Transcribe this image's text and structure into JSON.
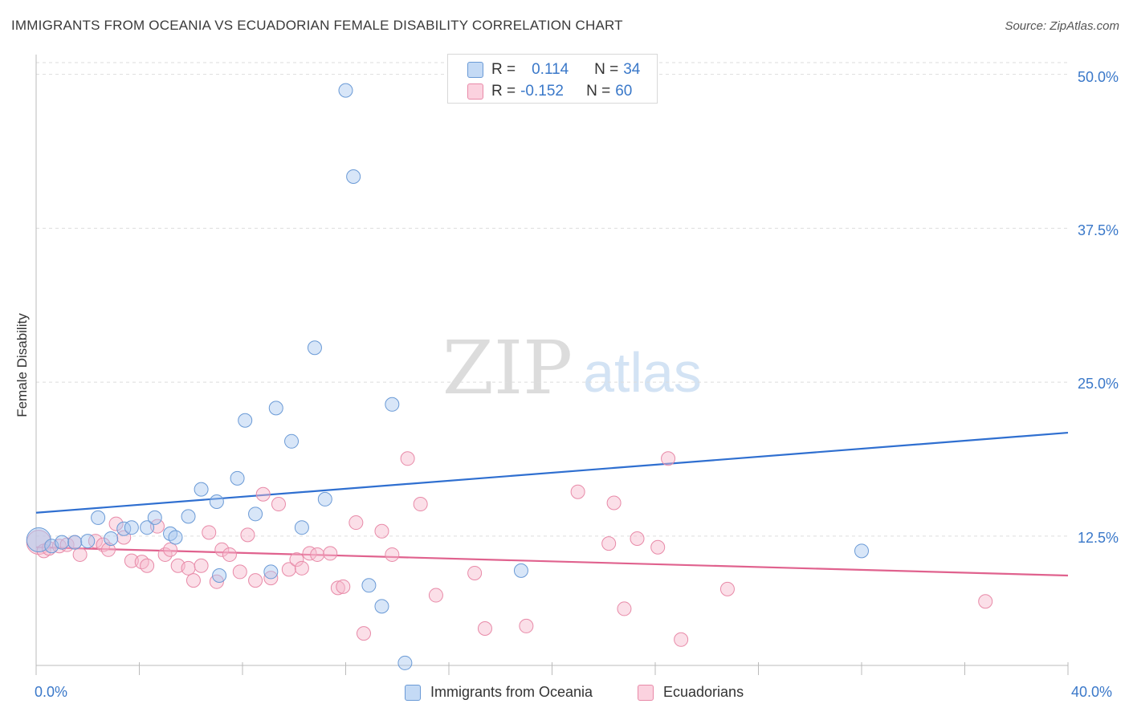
{
  "title": "IMMIGRANTS FROM OCEANIA VS ECUADORIAN FEMALE DISABILITY CORRELATION CHART",
  "source": "Source: ZipAtlas.com",
  "watermark": {
    "zip": "ZIP",
    "atlas": "atlas"
  },
  "legend": {
    "rows": [
      {
        "r_label": "R =",
        "r_value": "0.114",
        "n_label": "N =",
        "n_value": "34"
      },
      {
        "r_label": "R =",
        "r_value": "-0.152",
        "n_label": "N =",
        "n_value": "60"
      }
    ]
  },
  "bottom_legend": {
    "blue": "Immigrants from Oceania",
    "pink": "Ecuadorians"
  },
  "axis": {
    "ylabel": "Female Disability",
    "x_min_label": "0.0%",
    "x_max_label": "40.0%",
    "y_ticks": [
      "50.0%",
      "37.5%",
      "25.0%",
      "12.5%"
    ]
  },
  "colors": {
    "blue_fill": "#a9c8ef",
    "blue_stroke": "#6a9ad6",
    "blue_line": "#2f6fd0",
    "pink_fill": "#f6b9cc",
    "pink_stroke": "#e88aa8",
    "pink_line": "#e0628e",
    "axis_text": "#3a78c9",
    "grid": "#dddddd"
  },
  "chart_data": {
    "type": "scatter",
    "title": "IMMIGRANTS FROM OCEANIA VS ECUADORIAN FEMALE DISABILITY CORRELATION CHART",
    "xlabel": "",
    "ylabel": "Female Disability",
    "xlim": [
      0,
      40
    ],
    "ylim": [
      2,
      52
    ],
    "x_ticks": [
      0,
      4,
      8,
      12,
      16,
      20,
      24,
      28,
      32,
      36,
      40
    ],
    "y_ticks": [
      12.5,
      25.0,
      37.5,
      50.0
    ],
    "grid": "horizontal dashed",
    "legend_placement": "top-center",
    "series": [
      {
        "name": "Immigrants from Oceania",
        "color": "#a9c8ef",
        "trend": {
          "x": [
            0,
            40
          ],
          "y": [
            14.4,
            20.9
          ]
        },
        "points": [
          [
            0.1,
            12.2
          ],
          [
            0.6,
            11.7
          ],
          [
            1.0,
            12.0
          ],
          [
            1.5,
            12.0
          ],
          [
            2.0,
            12.1
          ],
          [
            2.4,
            14.0
          ],
          [
            2.9,
            12.3
          ],
          [
            3.4,
            13.1
          ],
          [
            3.7,
            13.2
          ],
          [
            4.3,
            13.2
          ],
          [
            4.6,
            14.0
          ],
          [
            5.2,
            12.7
          ],
          [
            5.4,
            12.4
          ],
          [
            5.9,
            14.1
          ],
          [
            6.4,
            16.3
          ],
          [
            7.0,
            15.3
          ],
          [
            7.1,
            9.3
          ],
          [
            7.8,
            17.2
          ],
          [
            8.1,
            21.9
          ],
          [
            8.5,
            14.3
          ],
          [
            9.1,
            9.6
          ],
          [
            9.3,
            22.9
          ],
          [
            9.9,
            20.2
          ],
          [
            10.3,
            13.2
          ],
          [
            10.8,
            27.8
          ],
          [
            11.2,
            15.5
          ],
          [
            12.0,
            48.7
          ],
          [
            12.3,
            41.7
          ],
          [
            12.9,
            8.5
          ],
          [
            13.4,
            6.8
          ],
          [
            13.8,
            23.2
          ],
          [
            14.3,
            2.2
          ],
          [
            18.8,
            9.7
          ],
          [
            32.0,
            11.3
          ]
        ]
      },
      {
        "name": "Ecuadorians",
        "color": "#f6b9cc",
        "trend": {
          "x": [
            0,
            40
          ],
          "y": [
            11.6,
            9.3
          ]
        },
        "points": [
          [
            0.1,
            12.0
          ],
          [
            0.3,
            11.3
          ],
          [
            0.5,
            11.5
          ],
          [
            0.9,
            11.7
          ],
          [
            1.2,
            11.8
          ],
          [
            1.5,
            12.0
          ],
          [
            1.7,
            11.0
          ],
          [
            2.3,
            12.1
          ],
          [
            2.6,
            11.8
          ],
          [
            2.8,
            11.4
          ],
          [
            3.1,
            13.5
          ],
          [
            3.4,
            12.4
          ],
          [
            3.7,
            10.5
          ],
          [
            4.1,
            10.4
          ],
          [
            4.3,
            10.1
          ],
          [
            4.7,
            13.3
          ],
          [
            5.0,
            11.0
          ],
          [
            5.2,
            11.4
          ],
          [
            5.5,
            10.1
          ],
          [
            5.9,
            9.9
          ],
          [
            6.1,
            8.9
          ],
          [
            6.4,
            10.1
          ],
          [
            6.7,
            12.8
          ],
          [
            7.0,
            8.8
          ],
          [
            7.2,
            11.4
          ],
          [
            7.5,
            11.0
          ],
          [
            7.9,
            9.6
          ],
          [
            8.2,
            12.6
          ],
          [
            8.5,
            8.9
          ],
          [
            8.8,
            15.9
          ],
          [
            9.1,
            9.1
          ],
          [
            9.4,
            15.1
          ],
          [
            9.8,
            9.8
          ],
          [
            10.1,
            10.6
          ],
          [
            10.3,
            9.9
          ],
          [
            10.6,
            11.1
          ],
          [
            10.9,
            11.0
          ],
          [
            11.4,
            11.1
          ],
          [
            11.7,
            8.3
          ],
          [
            11.9,
            8.4
          ],
          [
            12.4,
            13.6
          ],
          [
            12.7,
            4.6
          ],
          [
            13.4,
            12.9
          ],
          [
            13.8,
            11.0
          ],
          [
            14.4,
            18.8
          ],
          [
            14.9,
            15.1
          ],
          [
            15.5,
            7.7
          ],
          [
            17.0,
            9.5
          ],
          [
            17.4,
            5.0
          ],
          [
            19.0,
            5.2
          ],
          [
            21.0,
            16.1
          ],
          [
            22.2,
            11.9
          ],
          [
            22.4,
            15.2
          ],
          [
            22.8,
            6.6
          ],
          [
            23.3,
            12.3
          ],
          [
            24.1,
            11.6
          ],
          [
            24.5,
            18.8
          ],
          [
            25.0,
            4.1
          ],
          [
            26.8,
            8.2
          ],
          [
            36.8,
            7.2
          ]
        ]
      }
    ]
  }
}
